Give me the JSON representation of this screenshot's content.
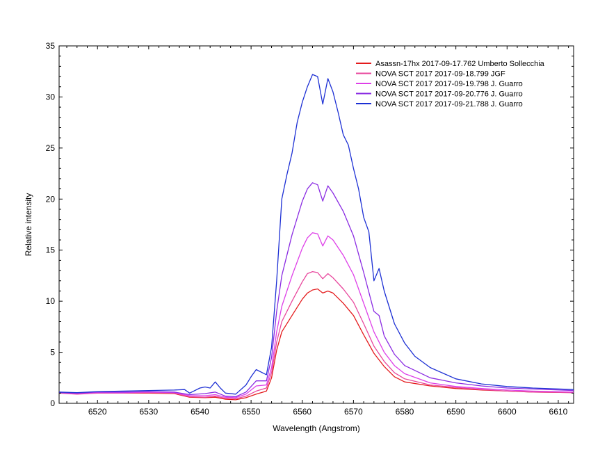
{
  "chart_data": {
    "type": "line",
    "title": "",
    "xlabel": "Wavelength (Angstrom)",
    "ylabel": "Relative intensity",
    "xlim": [
      6512.5,
      6613
    ],
    "ylim": [
      0,
      35
    ],
    "xticks": [
      6520,
      6530,
      6540,
      6550,
      6560,
      6570,
      6580,
      6590,
      6600,
      6610
    ],
    "yticks": [
      0,
      5,
      10,
      15,
      20,
      25,
      30,
      35
    ],
    "grid": false,
    "legend_position": "top-right",
    "series": [
      {
        "name": "Asassn-17hx  2017-09-17.762  Umberto Sollecchia",
        "color": "#e41a1c",
        "points": [
          [
            6512.5,
            1.05
          ],
          [
            6516,
            0.95
          ],
          [
            6520,
            1.05
          ],
          [
            6525,
            1.0
          ],
          [
            6530,
            1.0
          ],
          [
            6535,
            0.95
          ],
          [
            6538,
            0.6
          ],
          [
            6541,
            0.55
          ],
          [
            6543,
            0.6
          ],
          [
            6545,
            0.4
          ],
          [
            6547,
            0.35
          ],
          [
            6549,
            0.55
          ],
          [
            6551,
            0.9
          ],
          [
            6553,
            1.2
          ],
          [
            6554,
            2.5
          ],
          [
            6555,
            5.2
          ],
          [
            6556,
            7.0
          ],
          [
            6558,
            8.6
          ],
          [
            6560,
            10.2
          ],
          [
            6561,
            10.8
          ],
          [
            6562,
            11.1
          ],
          [
            6563,
            11.2
          ],
          [
            6564,
            10.8
          ],
          [
            6565,
            11.0
          ],
          [
            6566,
            10.8
          ],
          [
            6568,
            9.8
          ],
          [
            6570,
            8.6
          ],
          [
            6572,
            6.7
          ],
          [
            6574,
            4.9
          ],
          [
            6576,
            3.6
          ],
          [
            6578,
            2.6
          ],
          [
            6580,
            2.1
          ],
          [
            6585,
            1.7
          ],
          [
            6590,
            1.45
          ],
          [
            6595,
            1.3
          ],
          [
            6600,
            1.2
          ],
          [
            6605,
            1.1
          ],
          [
            6613,
            1.05
          ]
        ]
      },
      {
        "name": "NOVA SCT 2017  2017-09-18.799  JGF",
        "color": "#e8479d",
        "points": [
          [
            6512.5,
            1.0
          ],
          [
            6516,
            0.9
          ],
          [
            6520,
            1.0
          ],
          [
            6525,
            1.0
          ],
          [
            6530,
            1.05
          ],
          [
            6535,
            1.0
          ],
          [
            6538,
            0.65
          ],
          [
            6541,
            0.6
          ],
          [
            6543,
            0.7
          ],
          [
            6545,
            0.5
          ],
          [
            6547,
            0.45
          ],
          [
            6549,
            0.7
          ],
          [
            6551,
            1.2
          ],
          [
            6553,
            1.5
          ],
          [
            6554,
            3.0
          ],
          [
            6555,
            6.0
          ],
          [
            6556,
            8.0
          ],
          [
            6558,
            10.0
          ],
          [
            6560,
            11.9
          ],
          [
            6561,
            12.7
          ],
          [
            6562,
            12.9
          ],
          [
            6563,
            12.8
          ],
          [
            6564,
            12.2
          ],
          [
            6565,
            12.7
          ],
          [
            6566,
            12.3
          ],
          [
            6568,
            11.2
          ],
          [
            6570,
            9.9
          ],
          [
            6572,
            7.8
          ],
          [
            6574,
            5.6
          ],
          [
            6576,
            4.1
          ],
          [
            6578,
            3.0
          ],
          [
            6580,
            2.4
          ],
          [
            6585,
            1.8
          ],
          [
            6590,
            1.55
          ],
          [
            6595,
            1.35
          ],
          [
            6600,
            1.2
          ],
          [
            6605,
            1.1
          ],
          [
            6613,
            1.05
          ]
        ]
      },
      {
        "name": "NOVA SCT 2017  2017-09-19.798  J. Guarro",
        "color": "#de3fe8",
        "points": [
          [
            6512.5,
            1.05
          ],
          [
            6516,
            0.95
          ],
          [
            6520,
            1.05
          ],
          [
            6525,
            1.05
          ],
          [
            6530,
            1.1
          ],
          [
            6535,
            1.05
          ],
          [
            6538,
            0.75
          ],
          [
            6541,
            0.75
          ],
          [
            6543,
            0.85
          ],
          [
            6545,
            0.6
          ],
          [
            6547,
            0.55
          ],
          [
            6549,
            0.9
          ],
          [
            6551,
            1.7
          ],
          [
            6553,
            1.8
          ],
          [
            6554,
            3.5
          ],
          [
            6555,
            7.0
          ],
          [
            6556,
            9.5
          ],
          [
            6558,
            12.5
          ],
          [
            6560,
            15.2
          ],
          [
            6561,
            16.2
          ],
          [
            6562,
            16.7
          ],
          [
            6563,
            16.6
          ],
          [
            6564,
            15.4
          ],
          [
            6565,
            16.4
          ],
          [
            6566,
            16.0
          ],
          [
            6568,
            14.5
          ],
          [
            6570,
            12.6
          ],
          [
            6572,
            9.8
          ],
          [
            6574,
            7.0
          ],
          [
            6576,
            5.0
          ],
          [
            6578,
            3.7
          ],
          [
            6580,
            2.9
          ],
          [
            6585,
            2.0
          ],
          [
            6590,
            1.65
          ],
          [
            6595,
            1.45
          ],
          [
            6600,
            1.3
          ],
          [
            6605,
            1.2
          ],
          [
            6613,
            1.1
          ]
        ]
      },
      {
        "name": "NOVA SCT 2017  2017-09-20.776  J. Guarro",
        "color": "#8a2be2",
        "points": [
          [
            6512.5,
            1.05
          ],
          [
            6516,
            1.0
          ],
          [
            6520,
            1.1
          ],
          [
            6525,
            1.1
          ],
          [
            6530,
            1.15
          ],
          [
            6535,
            1.1
          ],
          [
            6538,
            0.85
          ],
          [
            6541,
            0.95
          ],
          [
            6543,
            1.1
          ],
          [
            6545,
            0.7
          ],
          [
            6547,
            0.65
          ],
          [
            6549,
            1.1
          ],
          [
            6551,
            2.2
          ],
          [
            6553,
            2.2
          ],
          [
            6554,
            4.5
          ],
          [
            6555,
            9.0
          ],
          [
            6556,
            12.5
          ],
          [
            6558,
            16.5
          ],
          [
            6560,
            19.8
          ],
          [
            6561,
            21.0
          ],
          [
            6562,
            21.6
          ],
          [
            6563,
            21.4
          ],
          [
            6564,
            19.8
          ],
          [
            6565,
            21.3
          ],
          [
            6566,
            20.6
          ],
          [
            6568,
            18.8
          ],
          [
            6570,
            16.4
          ],
          [
            6572,
            12.8
          ],
          [
            6574,
            9.0
          ],
          [
            6575,
            8.6
          ],
          [
            6576,
            6.6
          ],
          [
            6578,
            4.8
          ],
          [
            6580,
            3.7
          ],
          [
            6585,
            2.5
          ],
          [
            6590,
            2.0
          ],
          [
            6595,
            1.7
          ],
          [
            6600,
            1.5
          ],
          [
            6605,
            1.4
          ],
          [
            6613,
            1.25
          ]
        ]
      },
      {
        "name": "NOVA SCT 2017  2017-09-21.788  J. Guarro",
        "color": "#1c2fd4",
        "points": [
          [
            6512.5,
            1.1
          ],
          [
            6516,
            1.05
          ],
          [
            6520,
            1.15
          ],
          [
            6525,
            1.2
          ],
          [
            6530,
            1.25
          ],
          [
            6535,
            1.3
          ],
          [
            6537,
            1.35
          ],
          [
            6538,
            1.0
          ],
          [
            6540,
            1.5
          ],
          [
            6541,
            1.6
          ],
          [
            6542,
            1.5
          ],
          [
            6543,
            2.1
          ],
          [
            6544,
            1.5
          ],
          [
            6545,
            1.0
          ],
          [
            6547,
            0.9
          ],
          [
            6549,
            1.8
          ],
          [
            6550,
            2.6
          ],
          [
            6551,
            3.3
          ],
          [
            6553,
            2.8
          ],
          [
            6554,
            5.5
          ],
          [
            6555,
            12.0
          ],
          [
            6556,
            20.0
          ],
          [
            6557,
            22.4
          ],
          [
            6558,
            24.5
          ],
          [
            6559,
            27.5
          ],
          [
            6560,
            29.5
          ],
          [
            6561,
            31.0
          ],
          [
            6562,
            32.2
          ],
          [
            6563,
            32.0
          ],
          [
            6564,
            29.3
          ],
          [
            6565,
            31.8
          ],
          [
            6566,
            30.5
          ],
          [
            6567,
            28.5
          ],
          [
            6568,
            26.3
          ],
          [
            6569,
            25.3
          ],
          [
            6570,
            23.0
          ],
          [
            6571,
            21.0
          ],
          [
            6572,
            18.2
          ],
          [
            6573,
            16.8
          ],
          [
            6574,
            12.0
          ],
          [
            6575,
            13.2
          ],
          [
            6576,
            11.0
          ],
          [
            6578,
            7.8
          ],
          [
            6580,
            5.9
          ],
          [
            6582,
            4.6
          ],
          [
            6585,
            3.5
          ],
          [
            6590,
            2.4
          ],
          [
            6595,
            1.9
          ],
          [
            6600,
            1.65
          ],
          [
            6605,
            1.5
          ],
          [
            6613,
            1.35
          ]
        ]
      }
    ]
  }
}
